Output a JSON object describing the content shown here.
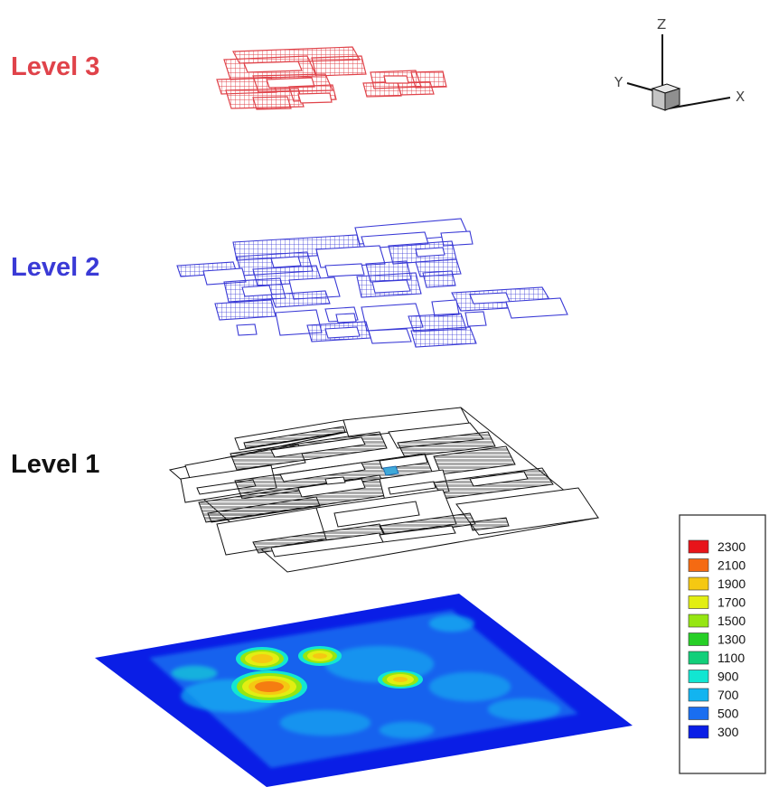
{
  "levels": [
    {
      "label": "Level 3",
      "color": "#e0434a"
    },
    {
      "label": "Level 2",
      "color": "#3a3ad6"
    },
    {
      "label": "Level 1",
      "color": "#111111"
    }
  ],
  "axes": {
    "x": "X",
    "y": "Y",
    "z": "Z"
  },
  "legend": {
    "values": [
      "2300",
      "2100",
      "1900",
      "1700",
      "1500",
      "1300",
      "1100",
      "900",
      "700",
      "500",
      "300"
    ],
    "colors": [
      "#e8141a",
      "#f56a12",
      "#f5c812",
      "#e2ee12",
      "#96e612",
      "#26cf26",
      "#12cf7a",
      "#12e6d2",
      "#12b4f0",
      "#1a6ef0",
      "#0a1ee6"
    ]
  }
}
